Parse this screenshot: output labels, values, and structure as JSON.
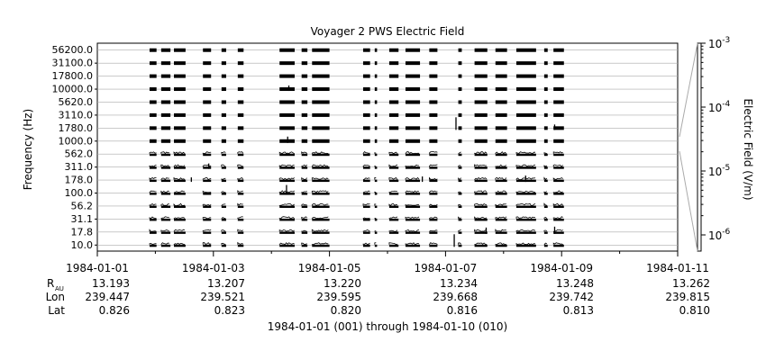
{
  "chart_data": {
    "type": "line",
    "title": "Voyager 2 PWS Electric Field",
    "ylabel": "Frequency (Hz)",
    "y2label": "Electric Field (V/m)",
    "xlabel": "1984-01-01 (001) through 1984-01-10 (010)",
    "channels": [
      "10.0",
      "17.8",
      "31.1",
      "56.2",
      "100.0",
      "178.0",
      "311.0",
      "562.0",
      "1000.0",
      "1780.0",
      "3110.0",
      "5620.0",
      "10000.0",
      "17800.0",
      "31100.0",
      "56200.0"
    ],
    "x_range": [
      "1984-01-01",
      "1984-01-11"
    ],
    "x_ticks": [
      "1984-01-01",
      "1984-01-03",
      "1984-01-05",
      "1984-01-07",
      "1984-01-09",
      "1984-01-11"
    ],
    "ephemeris": {
      "labels": {
        "r": "R",
        "r_sub": "AU",
        "lon": "Lon",
        "lat": "Lat"
      },
      "r": [
        "13.193",
        "13.207",
        "13.220",
        "13.234",
        "13.248",
        "13.262"
      ],
      "lon": [
        "239.447",
        "239.521",
        "239.595",
        "239.668",
        "239.742",
        "239.815"
      ],
      "lat": [
        "0.826",
        "0.823",
        "0.820",
        "0.816",
        "0.813",
        "0.810"
      ]
    },
    "colorbar": {
      "scale": "log",
      "range": [
        1e-06,
        0.001
      ],
      "ticks": [
        {
          "base": "10",
          "exp": "-3",
          "value": 0.001
        },
        {
          "base": "10",
          "exp": "-4",
          "value": 0.0001
        },
        {
          "base": "10",
          "exp": "-5",
          "value": 1e-05
        },
        {
          "base": "10",
          "exp": "-6",
          "value": 1e-06
        }
      ]
    },
    "data_segments_days": [
      [
        0.9,
        1.02
      ],
      [
        1.1,
        1.26
      ],
      [
        1.32,
        1.52
      ],
      [
        1.82,
        1.96
      ],
      [
        2.14,
        2.22
      ],
      [
        2.42,
        2.52
      ],
      [
        3.14,
        3.4
      ],
      [
        3.52,
        3.62
      ],
      [
        3.7,
        4.0
      ],
      [
        4.58,
        4.7
      ],
      [
        4.78,
        4.82
      ],
      [
        5.03,
        5.19
      ],
      [
        5.31,
        5.56
      ],
      [
        5.72,
        5.86
      ],
      [
        6.22,
        6.28
      ],
      [
        6.5,
        6.72
      ],
      [
        6.86,
        7.06
      ],
      [
        7.22,
        7.56
      ],
      [
        7.7,
        7.76
      ],
      [
        7.86,
        8.04
      ]
    ],
    "spikes": [
      {
        "t": 1.62,
        "ch": 5,
        "h": 5
      },
      {
        "t": 1.92,
        "ch": 6,
        "h": 6
      },
      {
        "t": 3.26,
        "ch": 4,
        "h": 11
      },
      {
        "t": 3.28,
        "ch": 8,
        "h": 7
      },
      {
        "t": 3.3,
        "ch": 12,
        "h": 6
      },
      {
        "t": 6.15,
        "ch": 0,
        "h": 14
      },
      {
        "t": 6.18,
        "ch": 9,
        "h": 14
      },
      {
        "t": 7.38,
        "ch": 5,
        "h": 7
      },
      {
        "t": 7.88,
        "ch": 1,
        "h": 8
      },
      {
        "t": 7.88,
        "ch": 9,
        "h": 6
      },
      {
        "t": 5.6,
        "ch": 5,
        "h": 6
      },
      {
        "t": 6.7,
        "ch": 1,
        "h": 7
      }
    ]
  }
}
